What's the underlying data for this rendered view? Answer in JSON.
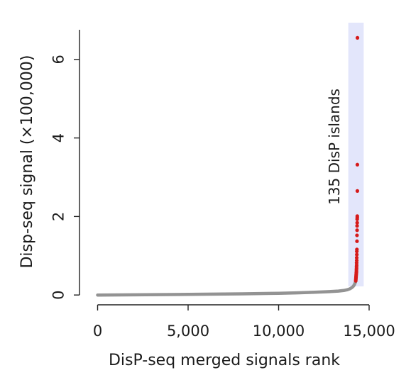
{
  "chart_data": {
    "type": "scatter",
    "xlabel": "DisP-seq merged signals rank",
    "ylabel": "Disp-seq signal (×100,000)",
    "xlim": [
      -1000,
      15000
    ],
    "ylim": [
      -0.25,
      6.9
    ],
    "x_ticks": [
      {
        "value": 0,
        "label": "0"
      },
      {
        "value": 5000,
        "label": "5,000"
      },
      {
        "value": 10000,
        "label": "10,000"
      },
      {
        "value": 15000,
        "label": "15,000"
      }
    ],
    "y_ticks": [
      {
        "value": 0,
        "label": "0"
      },
      {
        "value": 2,
        "label": "2"
      },
      {
        "value": 4,
        "label": "4"
      },
      {
        "value": 6,
        "label": "6"
      }
    ],
    "highlight_region": {
      "x_start": 13850,
      "x_end": 14700,
      "color": "#e3e6fb"
    },
    "annotation": "135 DisP islands",
    "series": [
      {
        "color": "#939393",
        "points": [
          [
            0,
            0.0
          ],
          [
            2000,
            0.005
          ],
          [
            4000,
            0.012
          ],
          [
            6000,
            0.02
          ],
          [
            8000,
            0.03
          ],
          [
            10000,
            0.045
          ],
          [
            11000,
            0.055
          ],
          [
            12000,
            0.07
          ],
          [
            12800,
            0.085
          ],
          [
            13300,
            0.1
          ],
          [
            13600,
            0.115
          ],
          [
            13800,
            0.135
          ],
          [
            13950,
            0.16
          ],
          [
            14050,
            0.19
          ],
          [
            14120,
            0.22
          ],
          [
            14180,
            0.26
          ],
          [
            14220,
            0.3
          ],
          [
            14250,
            0.33
          ]
        ]
      },
      {
        "color": "#d61a1a",
        "points": [
          [
            14260,
            0.36
          ],
          [
            14265,
            0.39
          ],
          [
            14270,
            0.42
          ],
          [
            14275,
            0.45
          ],
          [
            14280,
            0.48
          ],
          [
            14285,
            0.51
          ],
          [
            14290,
            0.54
          ],
          [
            14295,
            0.57
          ],
          [
            14300,
            0.6
          ],
          [
            14300,
            0.64
          ],
          [
            14305,
            0.68
          ],
          [
            14305,
            0.72
          ],
          [
            14310,
            0.76
          ],
          [
            14310,
            0.82
          ],
          [
            14315,
            0.88
          ],
          [
            14315,
            0.95
          ],
          [
            14320,
            1.03
          ],
          [
            14320,
            1.11
          ],
          [
            14325,
            1.16
          ],
          [
            14330,
            1.37
          ],
          [
            14330,
            1.52
          ],
          [
            14335,
            1.65
          ],
          [
            14335,
            1.76
          ],
          [
            14340,
            1.84
          ],
          [
            14340,
            1.93
          ],
          [
            14345,
            1.97
          ],
          [
            14345,
            2.01
          ],
          [
            14350,
            2.65
          ],
          [
            14350,
            3.32
          ],
          [
            14355,
            6.55
          ]
        ]
      }
    ]
  }
}
